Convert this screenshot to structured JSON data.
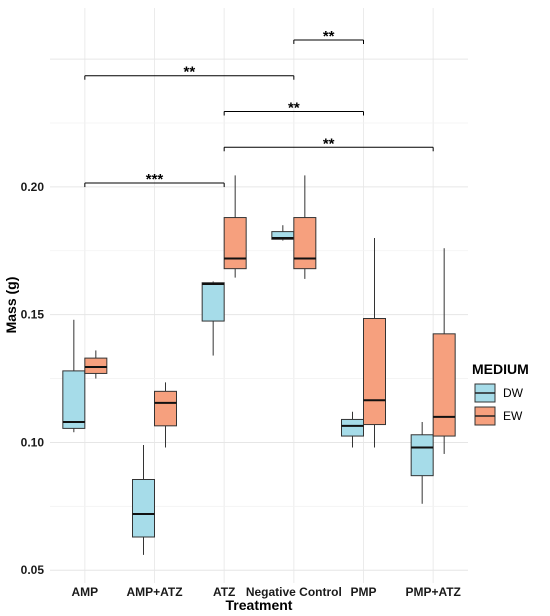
{
  "chart_data": {
    "type": "boxplot",
    "xlabel": "Treatment",
    "ylabel": "Mass (g)",
    "categories": [
      "AMP",
      "AMP+ATZ",
      "ATZ",
      "Negative Control",
      "PMP",
      "PMP+ATZ"
    ],
    "yticks": [
      "0.05",
      "0.10",
      "0.15",
      "0.20"
    ],
    "ylim": [
      0.045,
      0.27
    ],
    "grid": true,
    "legend": {
      "title": "MEDIUM",
      "position": "right"
    },
    "colors": {
      "DW": "#a6dce9",
      "EW": "#f6a07e"
    },
    "series": [
      {
        "name": "DW",
        "boxes": [
          {
            "min": 0.104,
            "q1": 0.1055,
            "median": 0.108,
            "q3": 0.128,
            "max": 0.148
          },
          {
            "min": 0.056,
            "q1": 0.063,
            "median": 0.072,
            "q3": 0.0855,
            "max": 0.099
          },
          {
            "min": 0.134,
            "q1": 0.1475,
            "median": 0.162,
            "q3": 0.1625,
            "max": 0.163
          },
          {
            "min": 0.179,
            "q1": 0.1795,
            "median": 0.18,
            "q3": 0.1825,
            "max": 0.185
          },
          {
            "min": 0.098,
            "q1": 0.1025,
            "median": 0.1065,
            "q3": 0.109,
            "max": 0.112
          },
          {
            "min": 0.076,
            "q1": 0.087,
            "median": 0.098,
            "q3": 0.103,
            "max": 0.108
          }
        ]
      },
      {
        "name": "EW",
        "boxes": [
          {
            "min": 0.125,
            "q1": 0.127,
            "median": 0.1295,
            "q3": 0.133,
            "max": 0.136
          },
          {
            "min": 0.098,
            "q1": 0.1065,
            "median": 0.1155,
            "q3": 0.12,
            "max": 0.1235
          },
          {
            "min": 0.1645,
            "q1": 0.168,
            "median": 0.172,
            "q3": 0.188,
            "max": 0.2045
          },
          {
            "min": 0.164,
            "q1": 0.168,
            "median": 0.172,
            "q3": 0.188,
            "max": 0.2045
          },
          {
            "min": 0.098,
            "q1": 0.107,
            "median": 0.1165,
            "q3": 0.1485,
            "max": 0.18
          },
          {
            "min": 0.0955,
            "q1": 0.1025,
            "median": 0.11,
            "q3": 0.1425,
            "max": 0.176
          }
        ]
      }
    ],
    "significance": [
      {
        "from": "Negative Control",
        "to": "PMP",
        "label": "**",
        "y": 0.2575
      },
      {
        "from": "AMP",
        "to": "Negative Control",
        "label": "**",
        "y": 0.2435
      },
      {
        "from": "ATZ",
        "to": "PMP",
        "label": "**",
        "y": 0.2295
      },
      {
        "from": "ATZ",
        "to": "PMP+ATZ",
        "label": "**",
        "y": 0.2155
      },
      {
        "from": "AMP",
        "to": "ATZ",
        "label": "***",
        "y": 0.2015
      }
    ]
  }
}
